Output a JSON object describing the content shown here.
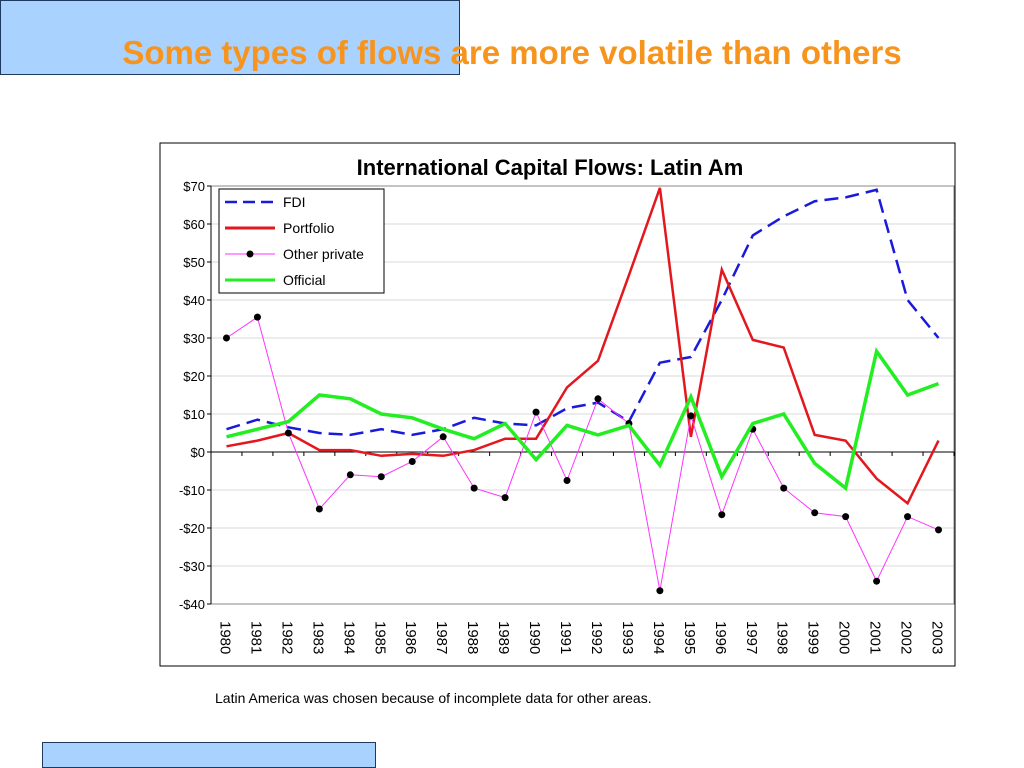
{
  "slide": {
    "title": "Some types of flows are more volatile than others",
    "note": "Latin America was chosen because of incomplete data for other areas."
  },
  "chart_data": {
    "type": "line",
    "title": "International Capital Flows: Latin Am",
    "x": [
      "1980",
      "1981",
      "1982",
      "1983",
      "1984",
      "1985",
      "1986",
      "1987",
      "1988",
      "1989",
      "1990",
      "1991",
      "1992",
      "1993",
      "1994",
      "1995",
      "1996",
      "1997",
      "1998",
      "1999",
      "2000",
      "2001",
      "2002",
      "2003"
    ],
    "ylim": [
      -40,
      70
    ],
    "yticks": [
      70,
      60,
      50,
      40,
      30,
      20,
      10,
      0,
      -10,
      -20,
      -30,
      -40
    ],
    "ytick_labels": [
      "$70",
      "$60",
      "$50",
      "$40",
      "$30",
      "$20",
      "$10",
      "$0",
      "-$10",
      "-$20",
      "-$30",
      "-$40"
    ],
    "grid": true,
    "legend_position": "top-left",
    "series": [
      {
        "name": "FDI",
        "color": "#1a1adb",
        "style": "dashed",
        "values": [
          6,
          8.5,
          6.5,
          5,
          4.5,
          6,
          4.5,
          6,
          9,
          7.5,
          7,
          11.5,
          13,
          8,
          23.5,
          25,
          40,
          57,
          62,
          66,
          67,
          69,
          40,
          30
        ]
      },
      {
        "name": "Portfolio",
        "color": "#e3171e",
        "style": "solid",
        "values": [
          1.5,
          3,
          5,
          0.5,
          0.5,
          -1,
          -0.5,
          -1,
          0.5,
          3.5,
          3.5,
          17,
          24,
          46.5,
          69.5,
          4,
          48,
          29.5,
          27.5,
          4.5,
          3,
          -7,
          -13.5,
          3
        ]
      },
      {
        "name": "Other private",
        "color": "#ff33ff",
        "style": "marker",
        "values": [
          30,
          35.5,
          5,
          -15,
          -6,
          -6.5,
          -2.5,
          4,
          -9.5,
          -12,
          10.5,
          -7.5,
          14,
          7.5,
          -36.5,
          9.5,
          -16.5,
          6,
          -9.5,
          -16,
          -17,
          -34,
          -17,
          -20.5
        ]
      },
      {
        "name": "Official",
        "color": "#22ee22",
        "style": "solid",
        "values": [
          4,
          6,
          8,
          15,
          14,
          10,
          9,
          6,
          3.5,
          7.5,
          -2,
          7,
          4.5,
          7,
          -3.5,
          14.5,
          -6.5,
          7.5,
          10,
          -3,
          -9.5,
          26.5,
          15,
          18
        ]
      }
    ]
  }
}
